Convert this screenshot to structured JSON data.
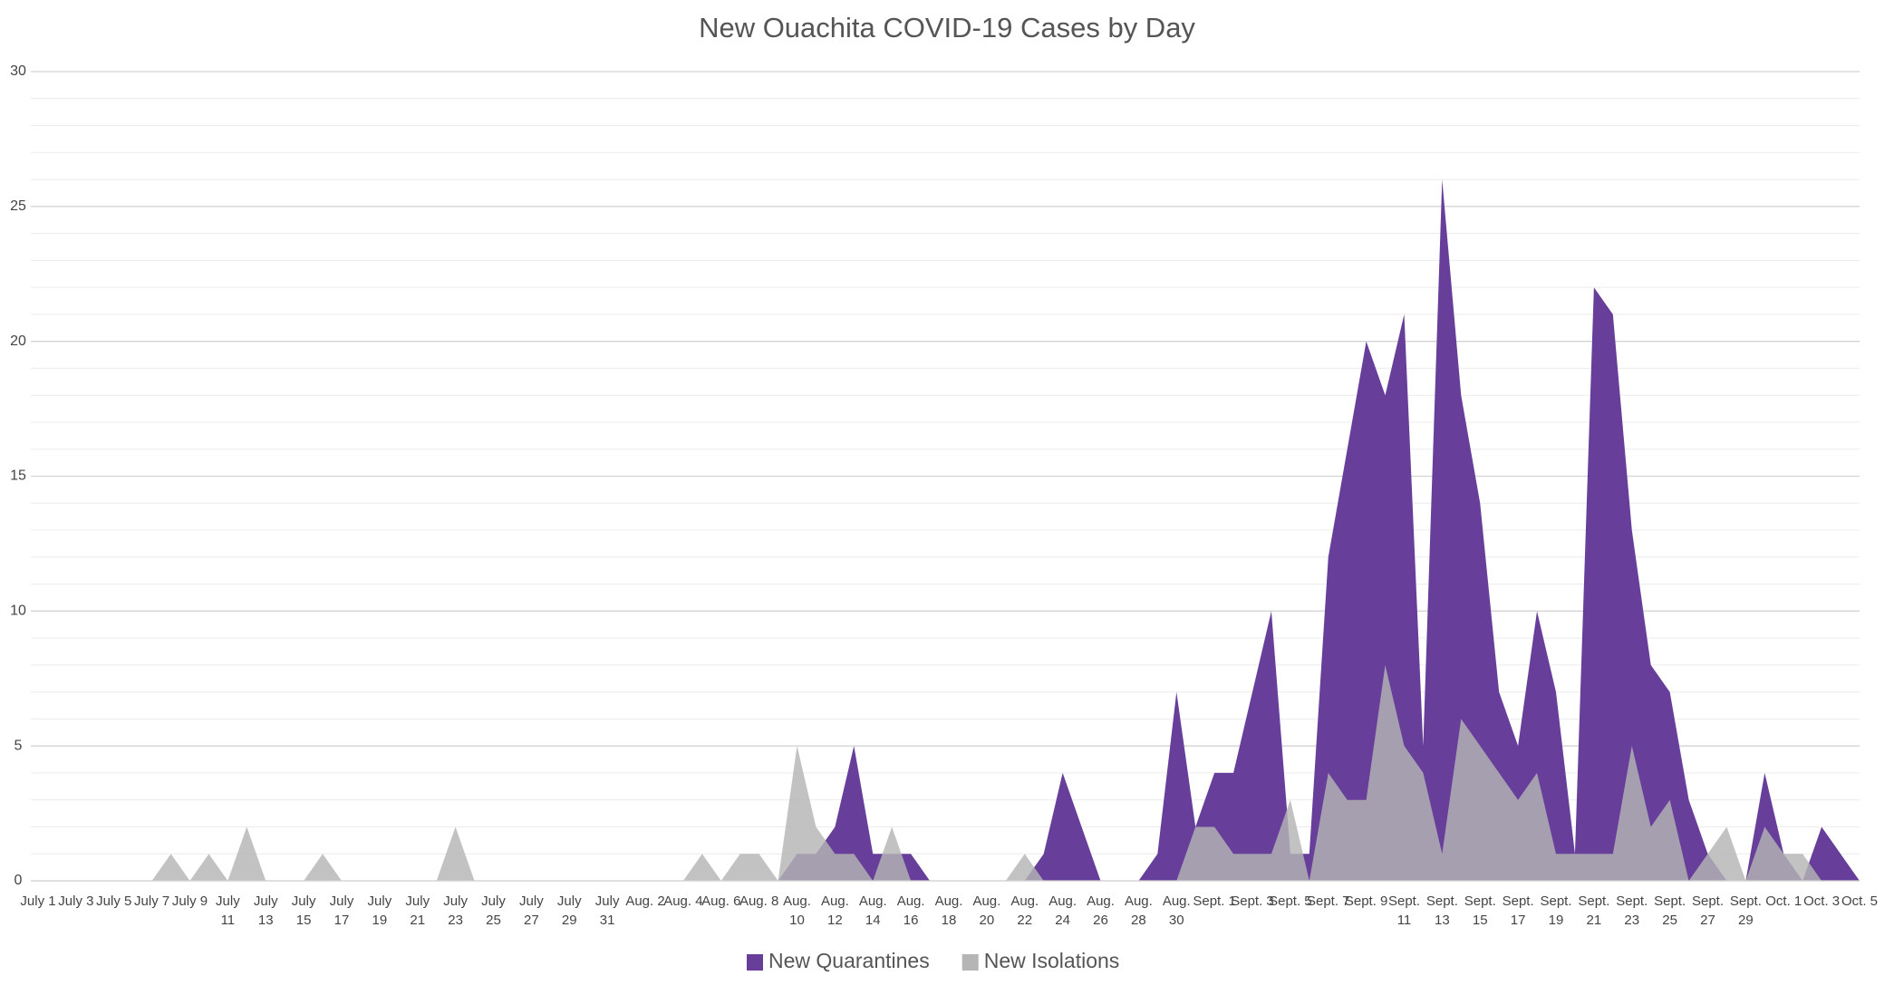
{
  "chart_data": {
    "type": "area",
    "title": "New Ouachita COVID-19 Cases by Day",
    "categories": [
      "July 1",
      null,
      "July 3",
      null,
      "July 5",
      null,
      "July 7",
      null,
      "July 9",
      null,
      "July 11",
      null,
      "July 13",
      null,
      "July 15",
      null,
      "July 17",
      null,
      "July 19",
      null,
      "July 21",
      null,
      "July 23",
      null,
      "July 25",
      null,
      "July 27",
      null,
      "July 29",
      null,
      "July 31",
      null,
      "Aug. 2",
      null,
      "Aug. 4",
      null,
      "Aug. 6",
      null,
      "Aug. 8",
      null,
      "Aug. 10",
      null,
      "Aug. 12",
      null,
      "Aug. 14",
      null,
      "Aug. 16",
      null,
      "Aug. 18",
      null,
      "Aug. 20",
      null,
      "Aug. 22",
      null,
      "Aug. 24",
      null,
      "Aug. 26",
      null,
      "Aug. 28",
      null,
      "Aug. 30",
      null,
      "Sept. 1",
      null,
      "Sept. 3",
      null,
      "Sept. 5",
      null,
      "Sept. 7",
      null,
      "Sept. 9",
      null,
      "Sept. 11",
      null,
      "Sept. 13",
      null,
      "Sept. 15",
      null,
      "Sept. 17",
      null,
      "Sept. 19",
      null,
      "Sept. 21",
      null,
      "Sept. 23",
      null,
      "Sept. 25",
      null,
      "Sept. 27",
      null,
      "Sept. 29",
      null,
      "Oct. 1",
      null,
      "Oct. 3",
      null,
      "Oct. 5"
    ],
    "series": [
      {
        "name": "New Quarantines",
        "color": "#673f9a",
        "values": [
          0,
          0,
          0,
          0,
          0,
          0,
          0,
          0,
          0,
          0,
          0,
          0,
          0,
          0,
          0,
          0,
          0,
          0,
          0,
          0,
          0,
          0,
          0,
          0,
          0,
          0,
          0,
          0,
          0,
          0,
          0,
          0,
          0,
          0,
          0,
          0,
          0,
          0,
          0,
          0,
          1,
          1,
          2,
          5,
          1,
          1,
          1,
          0,
          0,
          0,
          0,
          0,
          0,
          1,
          4,
          2,
          0,
          0,
          0,
          1,
          7,
          2,
          4,
          4,
          7,
          10,
          1,
          1,
          12,
          16,
          20,
          18,
          21,
          5,
          26,
          18,
          14,
          7,
          5,
          10,
          7,
          1,
          22,
          21,
          13,
          8,
          7,
          3,
          1,
          0,
          0,
          4,
          1,
          0,
          2,
          1,
          0
        ]
      },
      {
        "name": "New Isolations",
        "color": "#b5b5b5",
        "values": [
          0,
          0,
          0,
          0,
          0,
          0,
          0,
          1,
          0,
          1,
          0,
          2,
          0,
          0,
          0,
          1,
          0,
          0,
          0,
          0,
          0,
          0,
          2,
          0,
          0,
          0,
          0,
          0,
          0,
          0,
          0,
          0,
          0,
          0,
          0,
          1,
          0,
          1,
          1,
          0,
          5,
          2,
          1,
          1,
          0,
          2,
          0,
          0,
          0,
          0,
          0,
          0,
          1,
          0,
          0,
          0,
          0,
          0,
          0,
          0,
          0,
          2,
          2,
          1,
          1,
          1,
          3,
          0,
          4,
          3,
          3,
          8,
          5,
          4,
          1,
          6,
          5,
          4,
          3,
          4,
          1,
          1,
          1,
          1,
          5,
          2,
          3,
          0,
          1,
          2,
          0,
          2,
          1,
          1,
          0,
          0,
          0
        ]
      }
    ],
    "ylim": [
      0,
      30
    ],
    "yticks": [
      0,
      5,
      10,
      15,
      20,
      25,
      30
    ],
    "grid": true,
    "minor_grid": 1,
    "legend": "bottom"
  }
}
